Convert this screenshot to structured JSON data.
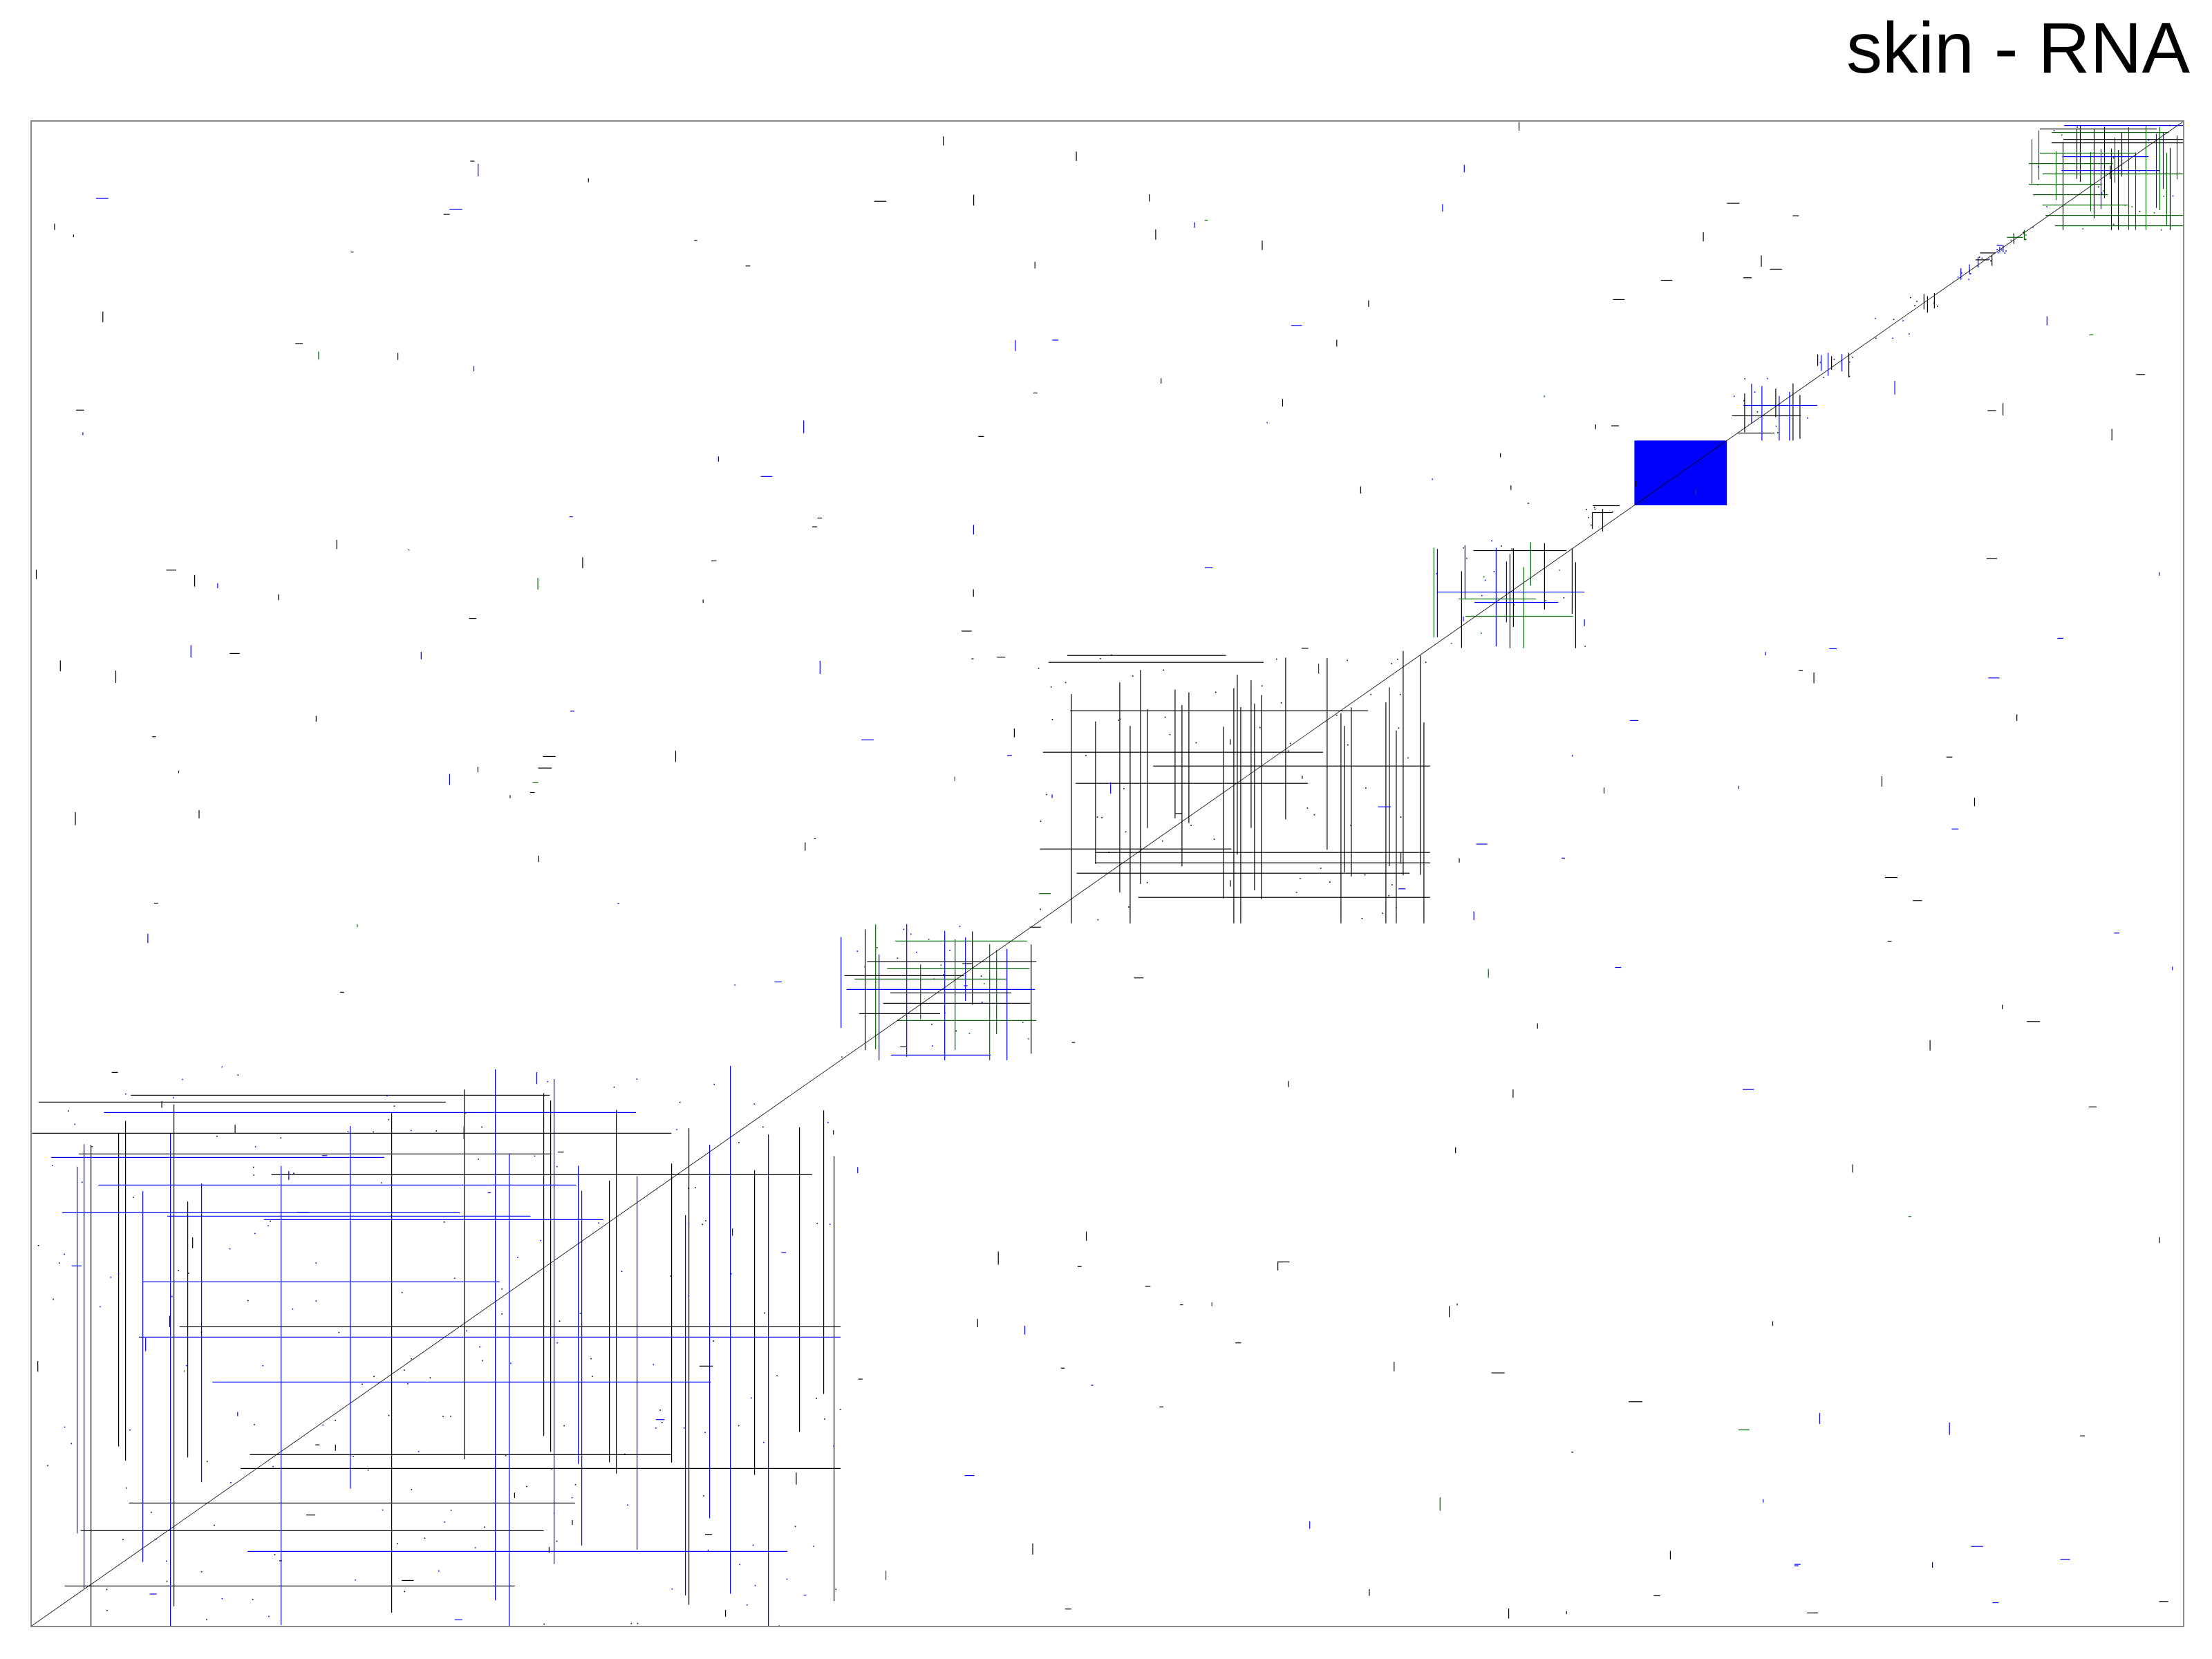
{
  "chart_data": {
    "type": "heatmap",
    "title": "skin - RNA",
    "xlabel": "",
    "ylabel": "",
    "grid": false,
    "colors": {
      "blue": "#0000ff",
      "green": "#006400",
      "black": "#000000",
      "frame": "#8a8a8a"
    },
    "blocks": [
      {
        "range": [
          0.0,
          0.376
        ],
        "density": 0.3,
        "palette": [
          "blue",
          "black"
        ]
      },
      {
        "range": [
          0.376,
          0.467
        ],
        "density": 0.55,
        "palette": [
          "blue",
          "green",
          "black"
        ]
      },
      {
        "range": [
          0.467,
          0.65
        ],
        "density": 0.4,
        "palette": [
          "black"
        ]
      },
      {
        "range": [
          0.65,
          0.722
        ],
        "density": 0.55,
        "palette": [
          "green",
          "black",
          "blue"
        ]
      },
      {
        "range": [
          0.722,
          0.745
        ],
        "density": 0.3,
        "palette": [
          "black"
        ]
      },
      {
        "range": [
          0.745,
          0.788
        ],
        "density": 1.0,
        "palette": [
          "blue"
        ]
      },
      {
        "range": [
          0.788,
          0.83
        ],
        "density": 0.55,
        "palette": [
          "black",
          "blue"
        ]
      },
      {
        "range": [
          0.83,
          0.847
        ],
        "density": 0.8,
        "palette": [
          "black",
          "blue"
        ]
      },
      {
        "range": [
          0.855,
          0.873
        ],
        "density": 0.2,
        "palette": [
          "blue",
          "black"
        ]
      },
      {
        "range": [
          0.873,
          0.887
        ],
        "density": 0.95,
        "palette": [
          "black"
        ]
      },
      {
        "range": [
          0.895,
          0.903
        ],
        "density": 0.9,
        "palette": [
          "blue"
        ]
      },
      {
        "range": [
          0.903,
          0.913
        ],
        "density": 0.8,
        "palette": [
          "black",
          "blue"
        ]
      },
      {
        "range": [
          0.913,
          0.918
        ],
        "density": 0.9,
        "palette": [
          "blue"
        ]
      },
      {
        "range": [
          0.918,
          0.928
        ],
        "density": 0.8,
        "palette": [
          "green",
          "black"
        ]
      },
      {
        "range": [
          0.928,
          1.0
        ],
        "density": 0.9,
        "palette": [
          "black",
          "blue",
          "green"
        ]
      }
    ],
    "off_diagonal_density": 0.03
  }
}
